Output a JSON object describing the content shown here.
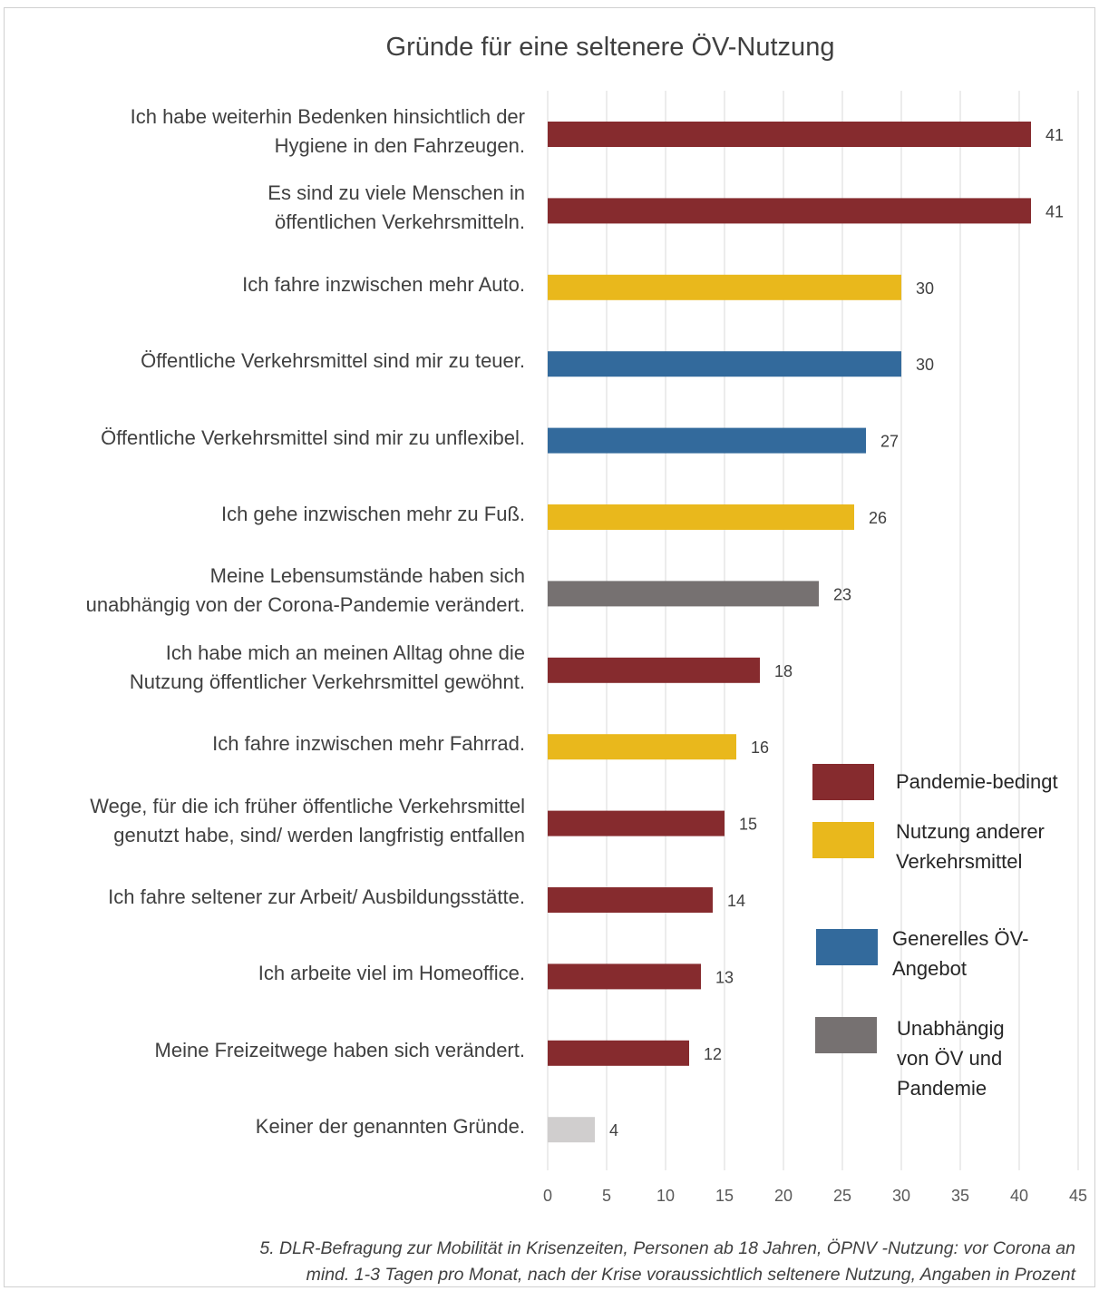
{
  "chart_data": {
    "type": "bar",
    "orientation": "horizontal",
    "title": "Gründe für eine seltenere ÖV-Nutzung",
    "categories": [
      [
        "Ich habe weiterhin Bedenken hinsichtlich der",
        "Hygiene in den Fahrzeugen."
      ],
      [
        "Es sind zu viele Menschen in",
        "öffentlichen Verkehrsmitteln."
      ],
      [
        "Ich fahre inzwischen mehr Auto."
      ],
      [
        "Öffentliche Verkehrsmittel sind mir zu teuer."
      ],
      [
        "Öffentliche Verkehrsmittel sind mir zu unflexibel."
      ],
      [
        "Ich gehe inzwischen mehr zu Fuß."
      ],
      [
        "Meine Lebensumstände haben sich",
        "unabhängig von der Corona-Pandemie verändert."
      ],
      [
        "Ich habe mich an meinen Alltag ohne die",
        "Nutzung öffentlicher Verkehrsmittel gewöhnt."
      ],
      [
        "Ich fahre inzwischen mehr Fahrrad."
      ],
      [
        "Wege, für die ich früher öffentliche Verkehrsmittel",
        "genutzt habe, sind/ werden langfristig entfallen"
      ],
      [
        "Ich fahre seltener zur Arbeit/ Ausbildungsstätte."
      ],
      [
        "Ich arbeite viel im Homeoffice."
      ],
      [
        "Meine Freizeitwege haben sich verändert."
      ],
      [
        "Keiner der genannten Gründe."
      ]
    ],
    "values": [
      41,
      41,
      30,
      30,
      27,
      26,
      23,
      18,
      16,
      15,
      14,
      13,
      12,
      4
    ],
    "groups": [
      "pandemic",
      "pandemic",
      "other_modes",
      "general",
      "general",
      "other_modes",
      "independent",
      "pandemic",
      "other_modes",
      "pandemic",
      "pandemic",
      "pandemic",
      "pandemic",
      "none"
    ],
    "group_colors": {
      "pandemic": "#862b2e",
      "other_modes": "#e9b81c",
      "general": "#336a9c",
      "independent": "#767171",
      "none": "#d0cece"
    },
    "xlim": [
      0,
      45
    ],
    "xticks": [
      0,
      5,
      10,
      15,
      20,
      25,
      30,
      35,
      40,
      45
    ],
    "grid": "vertical",
    "legend_position": "right",
    "legend": [
      {
        "label": "Pandemie-bedingt",
        "color": "#862b2e"
      },
      {
        "label": "Nutzung anderer Verkehrsmittel",
        "color": "#e9b81c"
      },
      {
        "label": "Generelles ÖV-Angebot",
        "color": "#336a9c"
      },
      {
        "label": "Unabhängig von ÖV und Pandemie",
        "color": "#767171"
      }
    ],
    "caption": [
      "5. DLR-Befragung zur Mobilität in Krisenzeiten, Personen ab 18 Jahren, ÖPNV -Nutzung: vor Corona an",
      "mind. 1-3 Tagen pro Monat, nach der Krise voraussichtlich seltenere Nutzung, Angaben in Prozent"
    ]
  }
}
